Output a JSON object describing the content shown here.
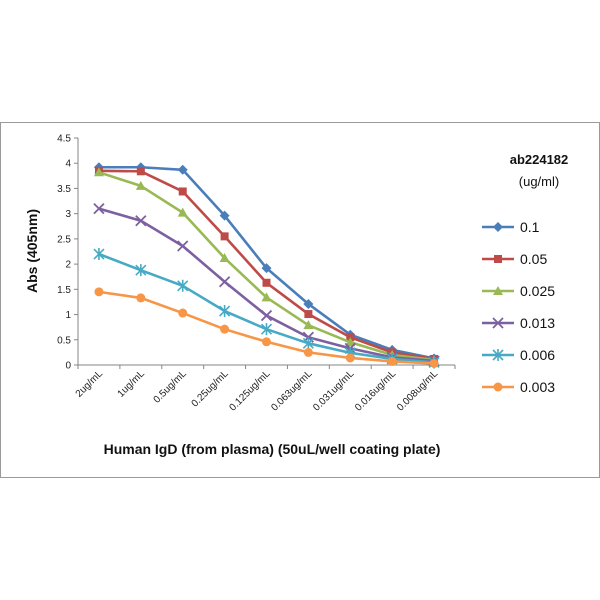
{
  "chart_data": {
    "type": "line",
    "title": "",
    "xlabel": "Human IgD (from plasma) (50uL/well coating plate)",
    "ylabel": "Abs (405nm)",
    "ylim": [
      0,
      4.5
    ],
    "yticks": [
      "0",
      "0.5",
      "1",
      "1.5",
      "2",
      "2.5",
      "3",
      "3.5",
      "4",
      "4.5"
    ],
    "categories": [
      "2ug/mL",
      "1ug/mL",
      "0.5ug/mL",
      "0.25ug/mL",
      "0.125ug/mL",
      "0.063ug/mL",
      "0.031ug/mL",
      "0.016ug/mL",
      "0.008ug/mL"
    ],
    "grid": false,
    "legend": {
      "title": "ab224182",
      "subtitle": "(ug/ml)",
      "placement": "right"
    },
    "series": [
      {
        "name": "0.1",
        "color": "#4a7ebb",
        "marker": "diamond",
        "values": [
          3.92,
          3.92,
          3.87,
          2.96,
          1.92,
          1.21,
          0.6,
          0.3,
          0.13
        ]
      },
      {
        "name": "0.05",
        "color": "#be4b48",
        "marker": "square",
        "values": [
          3.85,
          3.84,
          3.44,
          2.55,
          1.63,
          1.01,
          0.55,
          0.25,
          0.12
        ]
      },
      {
        "name": "0.025",
        "color": "#98b954",
        "marker": "triangle",
        "values": [
          3.82,
          3.55,
          3.02,
          2.12,
          1.34,
          0.79,
          0.45,
          0.2,
          0.1
        ]
      },
      {
        "name": "0.013",
        "color": "#7d60a0",
        "marker": "x",
        "values": [
          3.1,
          2.86,
          2.36,
          1.65,
          0.98,
          0.55,
          0.33,
          0.15,
          0.08
        ]
      },
      {
        "name": "0.006",
        "color": "#46aac5",
        "marker": "star",
        "values": [
          2.2,
          1.88,
          1.57,
          1.07,
          0.71,
          0.43,
          0.24,
          0.12,
          0.05
        ]
      },
      {
        "name": "0.003",
        "color": "#f79646",
        "marker": "circle",
        "values": [
          1.45,
          1.33,
          1.03,
          0.71,
          0.46,
          0.25,
          0.14,
          0.07,
          0.03
        ]
      }
    ]
  }
}
